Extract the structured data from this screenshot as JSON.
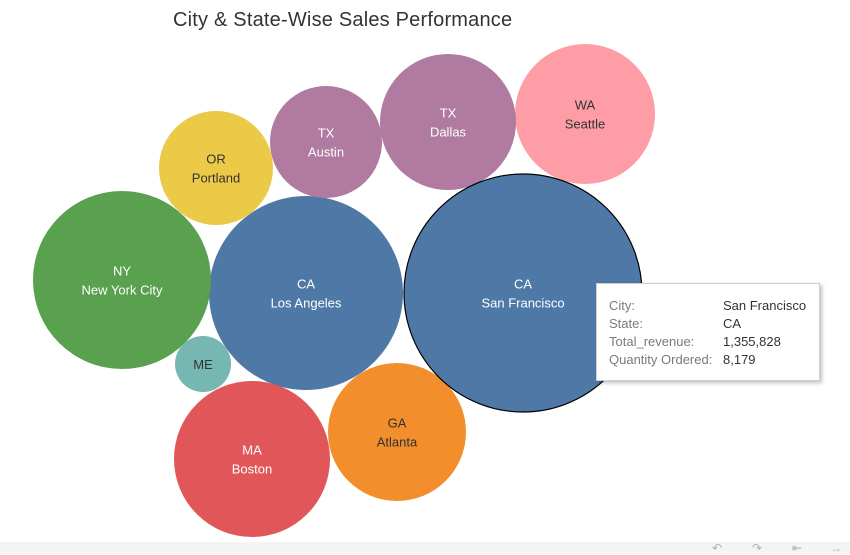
{
  "chart_data": {
    "type": "bubble",
    "title": "City & State-Wise Sales Performance",
    "bubbles": [
      {
        "state": "CA",
        "city": "San Francisco",
        "total_revenue": 1355828,
        "quantity_ordered": 8179,
        "color": "#4e79a7",
        "text_color": "#ffffff",
        "highlighted": true
      },
      {
        "state": "CA",
        "city": "Los Angeles",
        "color": "#4e79a7",
        "text_color": "#ffffff"
      },
      {
        "state": "NY",
        "city": "New York City",
        "color": "#59a14f",
        "text_color": "#ffffff"
      },
      {
        "state": "MA",
        "city": "Boston",
        "color": "#e15759",
        "text_color": "#ffffff"
      },
      {
        "state": "GA",
        "city": "Atlanta",
        "color": "#f28e2b",
        "text_color": "#333333"
      },
      {
        "state": "WA",
        "city": "Seattle",
        "color": "#ff9da7",
        "text_color": "#333333"
      },
      {
        "state": "TX",
        "city": "Dallas",
        "color": "#b07aa1",
        "text_color": "#ffffff"
      },
      {
        "state": "TX",
        "city": "Austin",
        "color": "#b07aa1",
        "text_color": "#ffffff"
      },
      {
        "state": "OR",
        "city": "Portland",
        "color": "#edc948",
        "text_color": "#333333"
      },
      {
        "state": "ME",
        "city": "",
        "color": "#76b7b2",
        "text_color": "#333333"
      }
    ]
  },
  "tooltip": {
    "rows": [
      {
        "key": "City:",
        "value": "San Francisco"
      },
      {
        "key": "State:",
        "value": "CA"
      },
      {
        "key": "Total_revenue:",
        "value": "1,355,828"
      },
      {
        "key": "Quantity Ordered:",
        "value": "8,179"
      }
    ]
  },
  "toolbar": {
    "icons": [
      "undo-icon",
      "redo-icon",
      "revert-icon",
      "forward-icon"
    ]
  }
}
